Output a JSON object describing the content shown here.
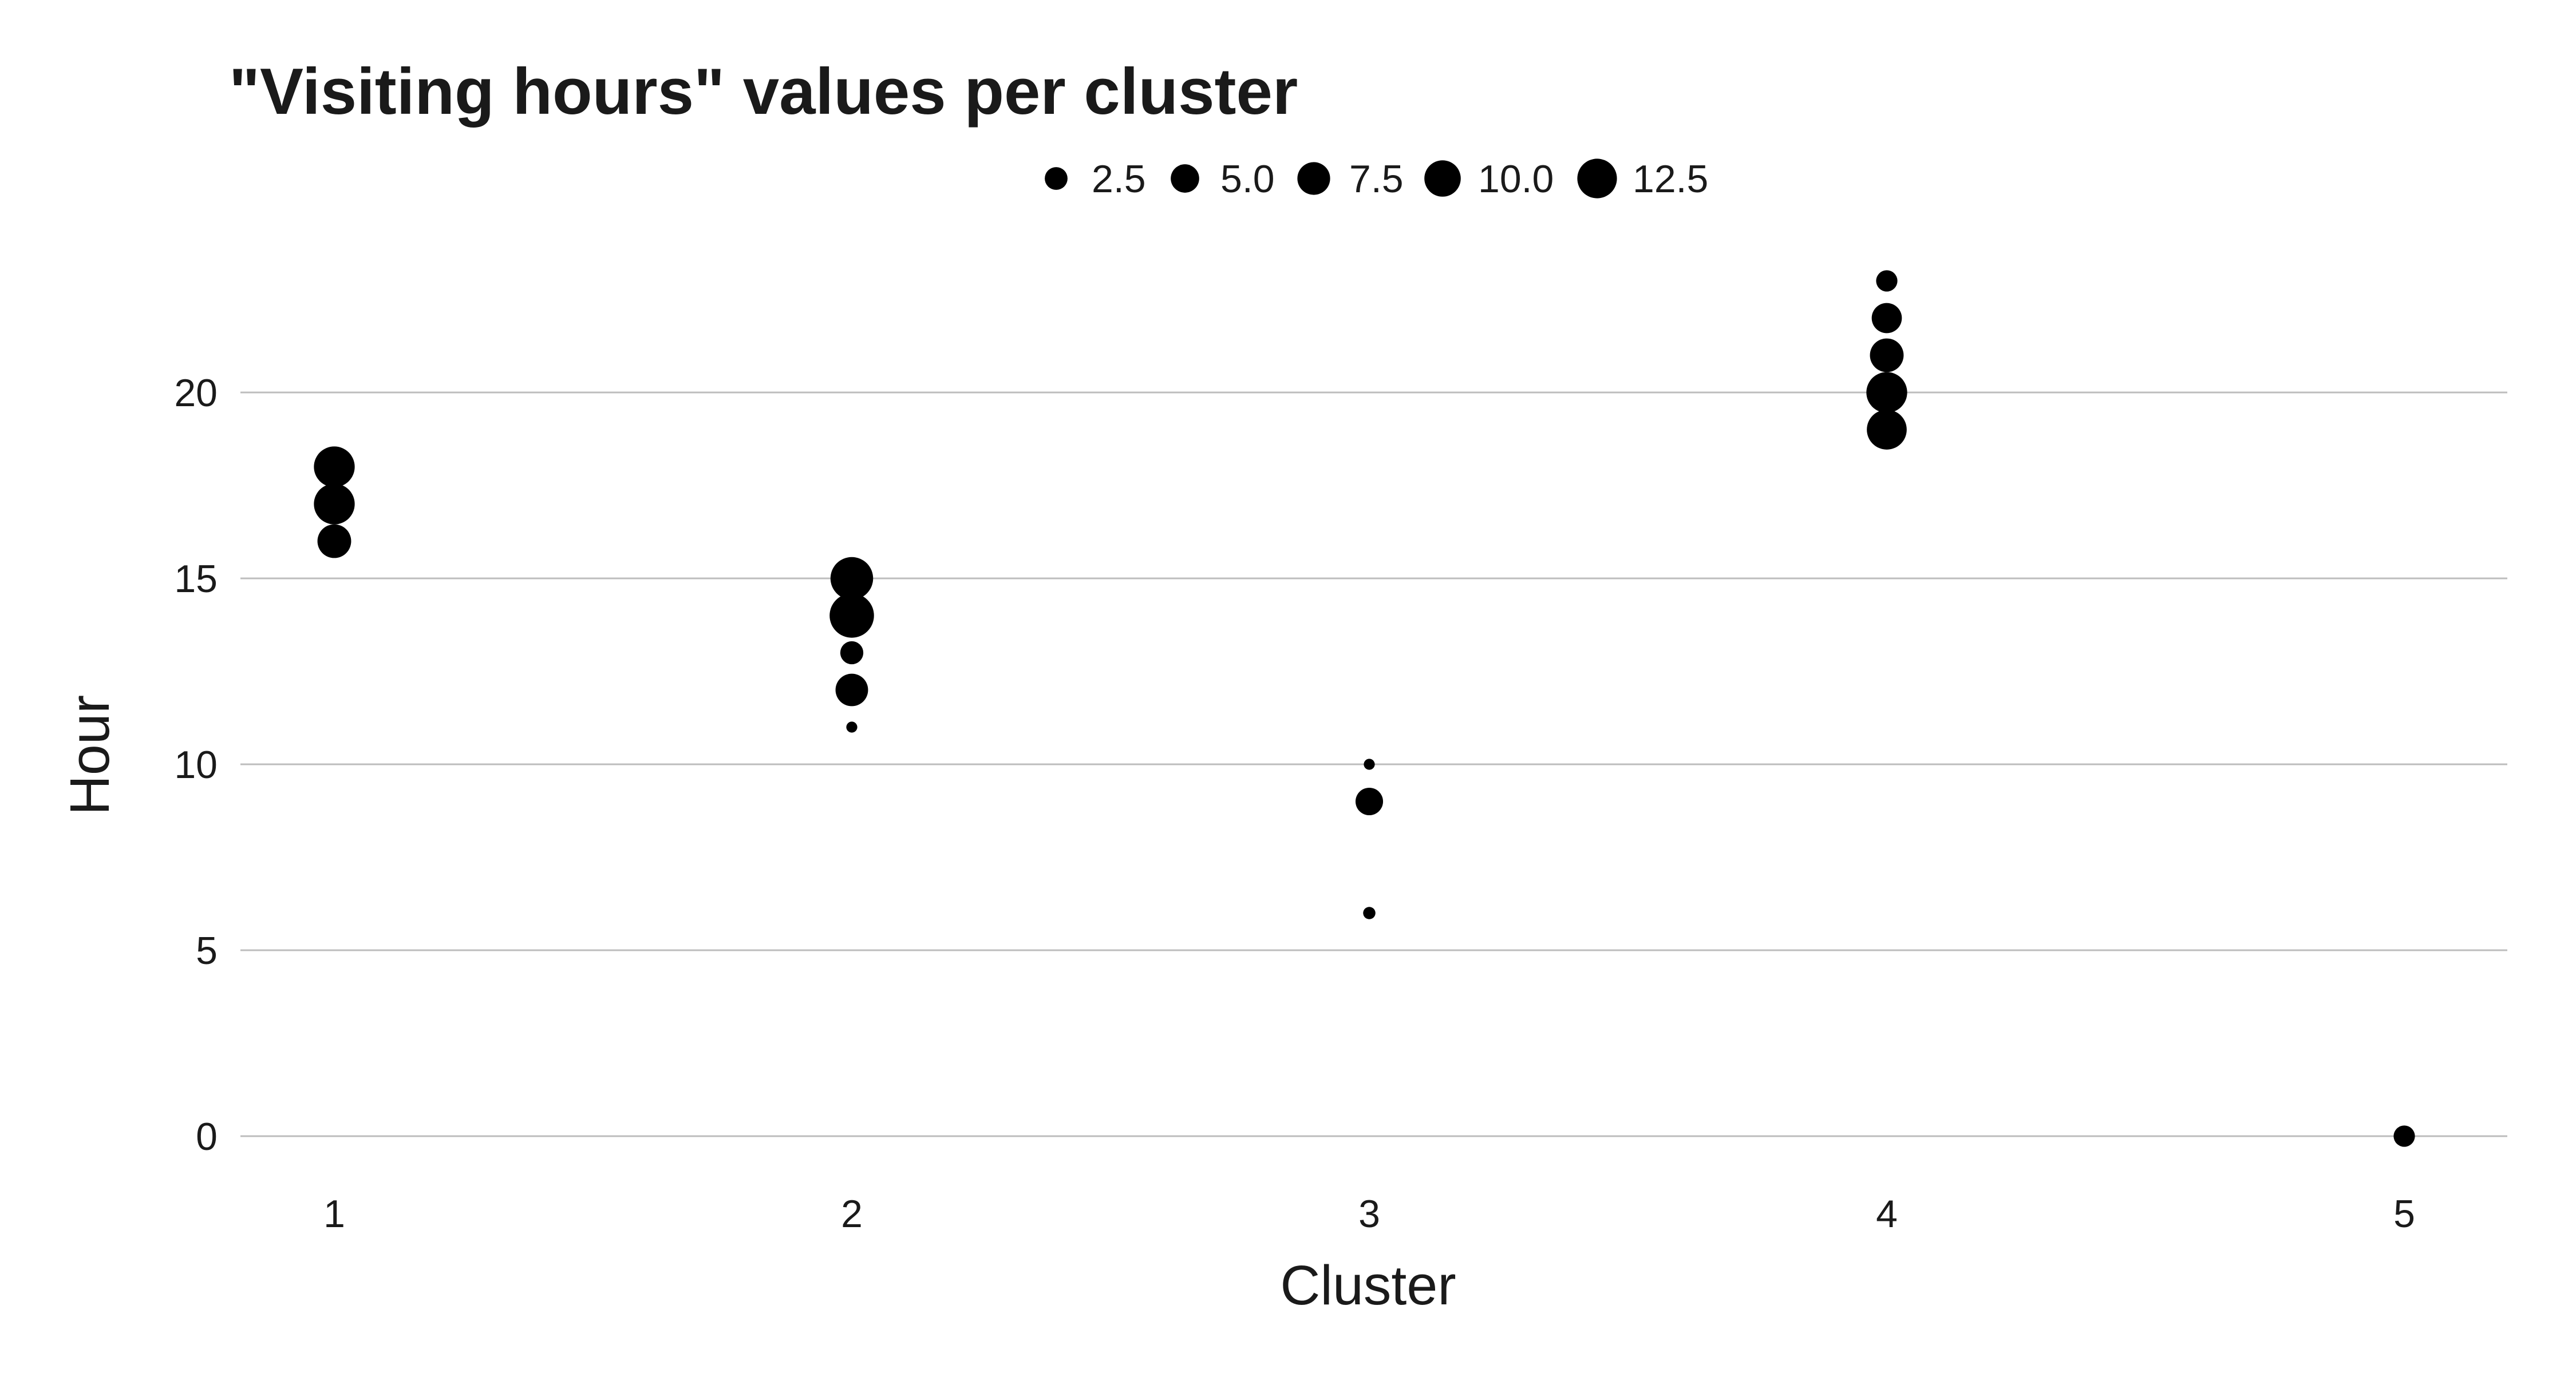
{
  "chart_data": {
    "type": "scatter",
    "title": "\"Visiting hours\" values per cluster",
    "xlabel": "Cluster",
    "ylabel": "Hour",
    "x_ticks": [
      "1",
      "2",
      "3",
      "4",
      "5"
    ],
    "y_ticks": [
      "0",
      "5",
      "10",
      "15",
      "20"
    ],
    "xlim": [
      0.7,
      5.2
    ],
    "ylim": [
      -1,
      23.5
    ],
    "grid": "horizontal",
    "legend_position": "top",
    "size_legend": {
      "labels": [
        "2.5",
        "5.0",
        "7.5",
        "10.0",
        "12.5"
      ],
      "values": [
        2.5,
        5.0,
        7.5,
        10.0,
        12.5
      ]
    },
    "points": [
      {
        "cluster": 1,
        "hour": 16,
        "size": 7.5
      },
      {
        "cluster": 1,
        "hour": 17,
        "size": 11
      },
      {
        "cluster": 1,
        "hour": 18,
        "size": 11
      },
      {
        "cluster": 2,
        "hour": 11,
        "size": 0.8
      },
      {
        "cluster": 2,
        "hour": 12,
        "size": 7
      },
      {
        "cluster": 2,
        "hour": 13,
        "size": 3.5
      },
      {
        "cluster": 2,
        "hour": 14,
        "size": 13
      },
      {
        "cluster": 2,
        "hour": 15,
        "size": 12
      },
      {
        "cluster": 3,
        "hour": 6,
        "size": 1
      },
      {
        "cluster": 3,
        "hour": 9,
        "size": 5
      },
      {
        "cluster": 3,
        "hour": 10,
        "size": 0.8
      },
      {
        "cluster": 4,
        "hour": 19,
        "size": 10.5
      },
      {
        "cluster": 4,
        "hour": 20,
        "size": 11
      },
      {
        "cluster": 4,
        "hour": 21,
        "size": 7.5
      },
      {
        "cluster": 4,
        "hour": 22,
        "size": 6
      },
      {
        "cluster": 4,
        "hour": 23,
        "size": 3
      },
      {
        "cluster": 5,
        "hour": 0,
        "size": 3
      }
    ],
    "colors": {
      "points": "#000000",
      "grid": "#bdbdbd",
      "text": "#1a1a1a"
    }
  }
}
